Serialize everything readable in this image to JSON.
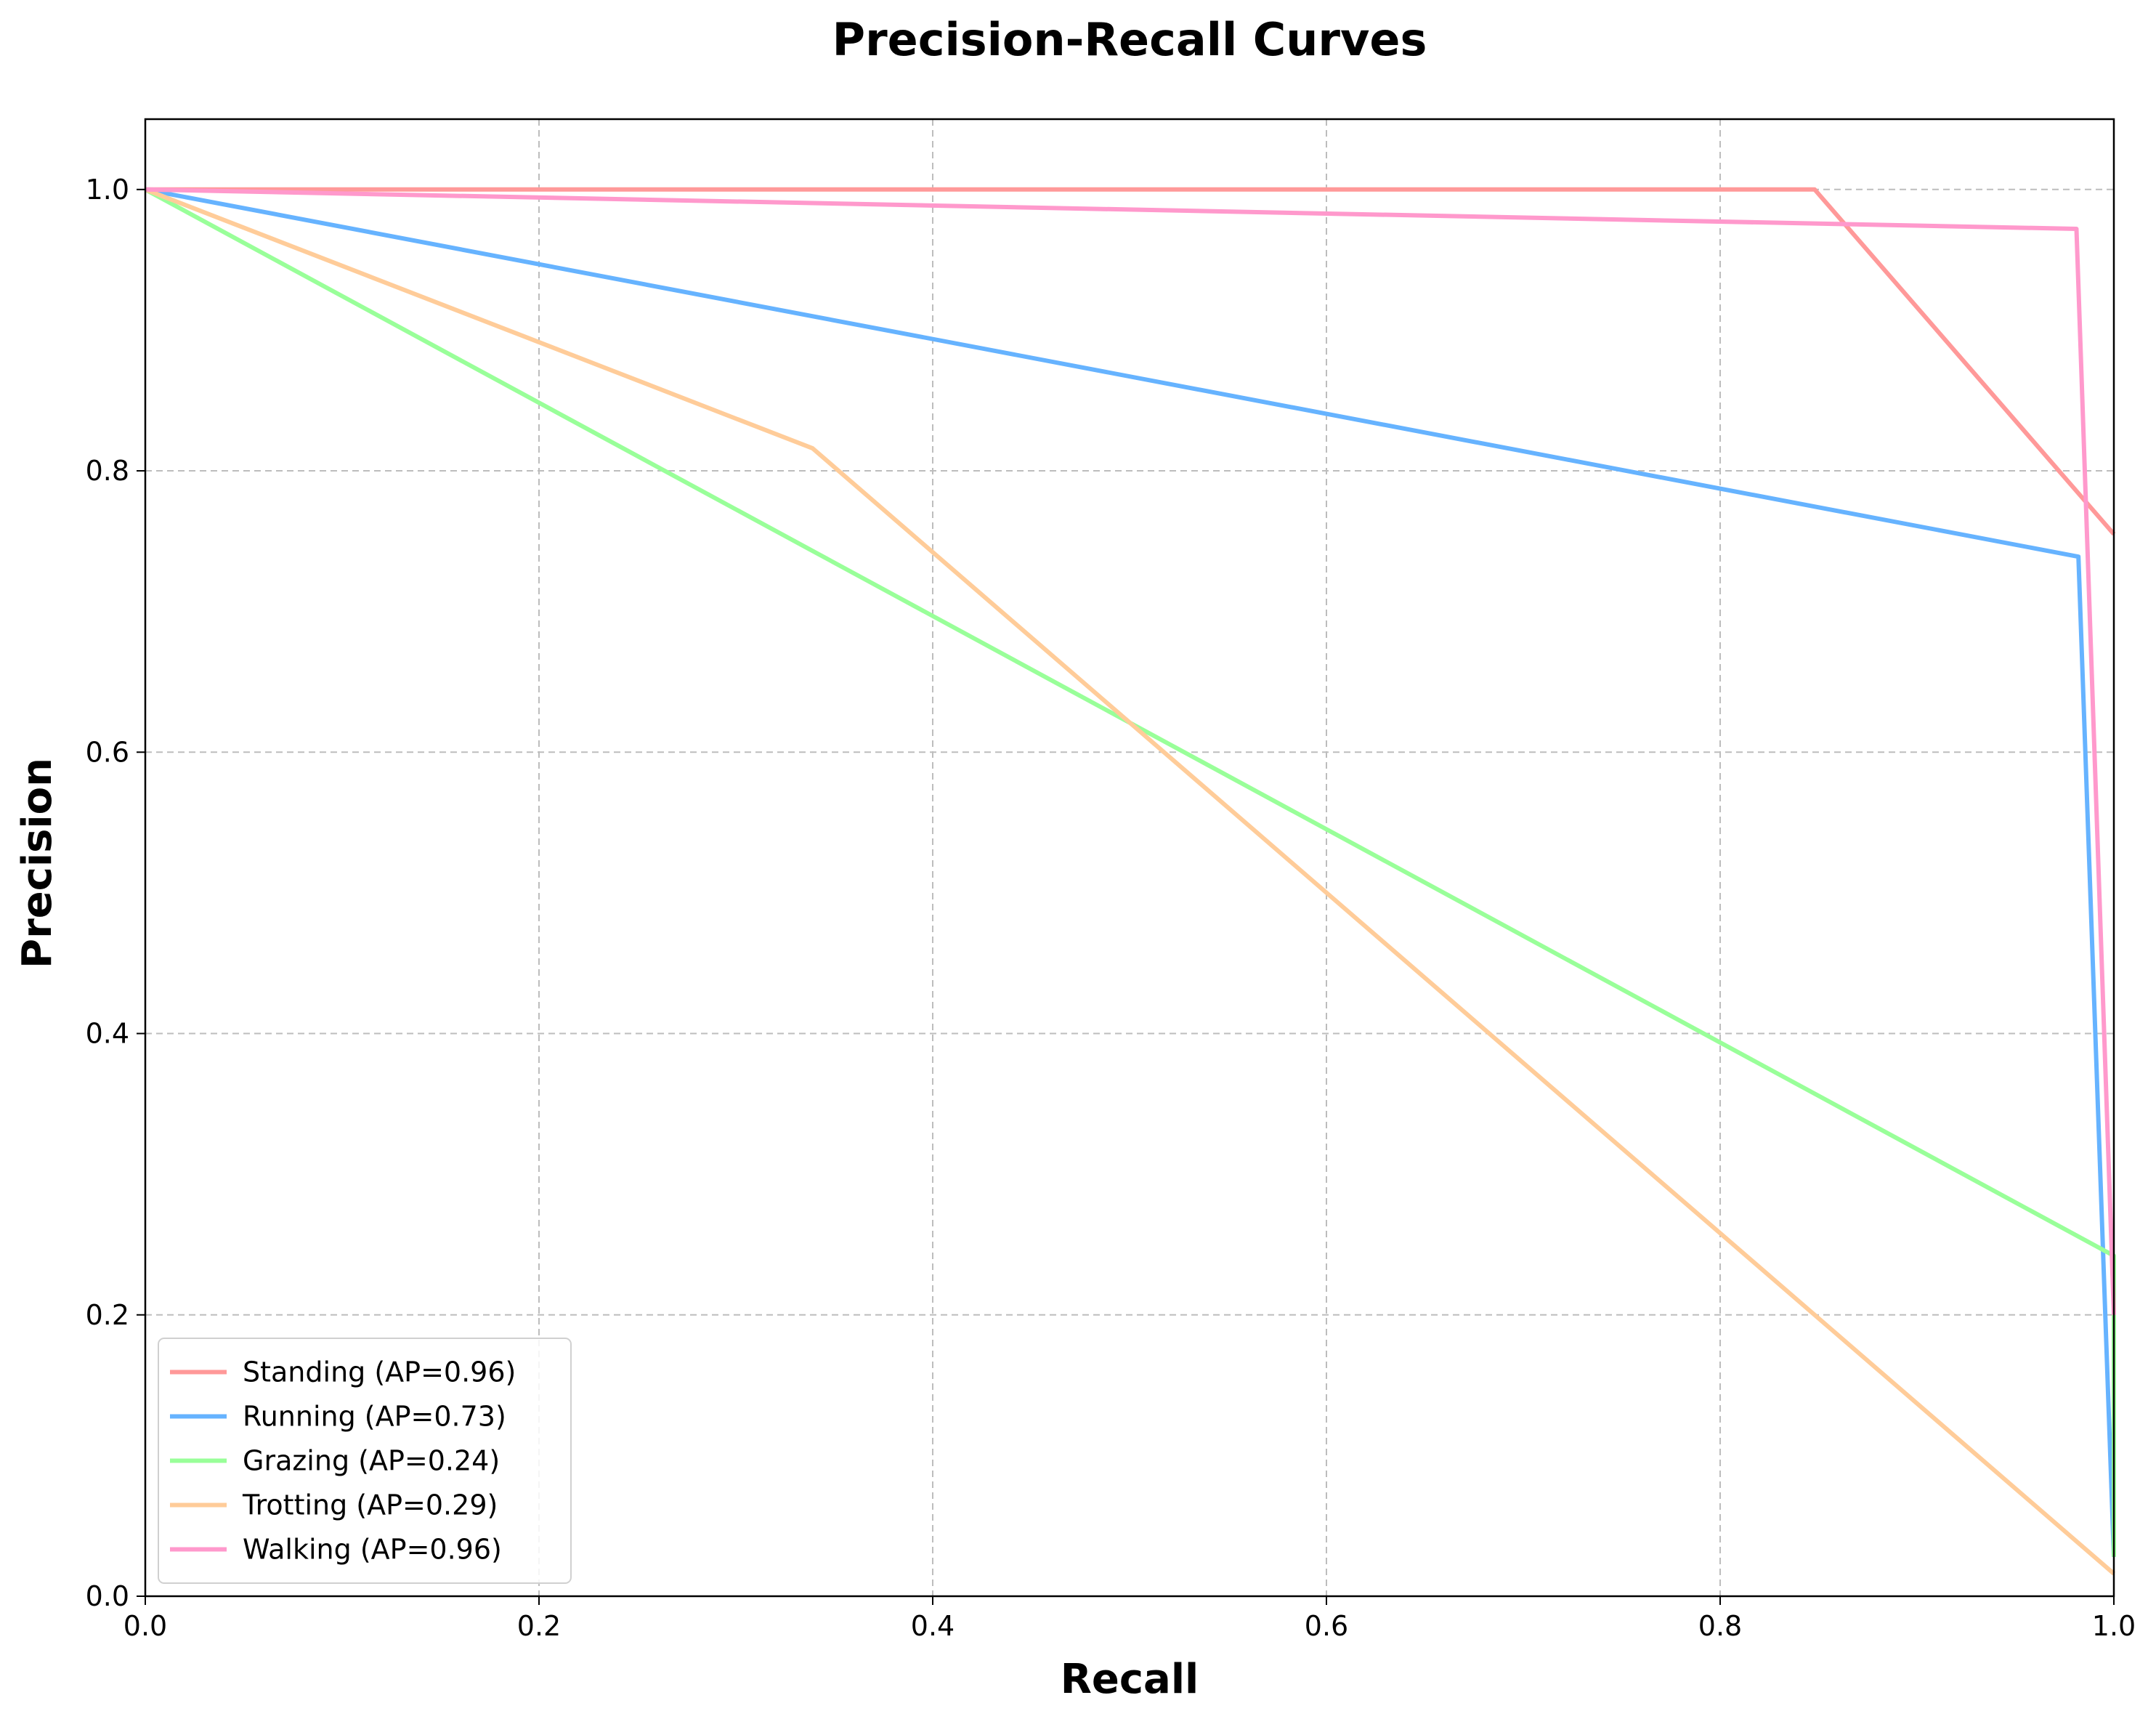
{
  "chart_data": {
    "type": "line",
    "title": "Precision-Recall Curves",
    "xlabel": "Recall",
    "ylabel": "Precision",
    "xlim": [
      0,
      1
    ],
    "ylim": [
      0,
      1.05
    ],
    "xticks": [
      "0.0",
      "0.2",
      "0.4",
      "0.6",
      "0.8",
      "1.0"
    ],
    "yticks": [
      "0.0",
      "0.2",
      "0.4",
      "0.6",
      "0.8",
      "1.0"
    ],
    "grid": true,
    "legend_position": "lower-left",
    "series": [
      {
        "name": "Standing (AP=0.96)",
        "color": "#ff9999",
        "points": [
          [
            0.0,
            1.0
          ],
          [
            0.848,
            1.0
          ],
          [
            1.0,
            0.755
          ]
        ]
      },
      {
        "name": "Running (AP=0.73)",
        "color": "#66b3ff",
        "points": [
          [
            0.0,
            1.0
          ],
          [
            0.982,
            0.739
          ],
          [
            1.0,
            0.028
          ]
        ]
      },
      {
        "name": "Grazing (AP=0.24)",
        "color": "#99ff99",
        "points": [
          [
            0.0,
            1.0
          ],
          [
            1.0,
            0.242
          ],
          [
            1.0,
            0.028
          ]
        ]
      },
      {
        "name": "Trotting (AP=0.29)",
        "color": "#ffcc99",
        "points": [
          [
            0.0,
            1.0
          ],
          [
            0.339,
            0.816
          ],
          [
            1.0,
            0.016
          ]
        ]
      },
      {
        "name": "Walking (AP=0.96)",
        "color": "#ff99cc",
        "points": [
          [
            0.0,
            1.0
          ],
          [
            0.981,
            0.972
          ],
          [
            1.0,
            0.2
          ]
        ]
      }
    ]
  }
}
